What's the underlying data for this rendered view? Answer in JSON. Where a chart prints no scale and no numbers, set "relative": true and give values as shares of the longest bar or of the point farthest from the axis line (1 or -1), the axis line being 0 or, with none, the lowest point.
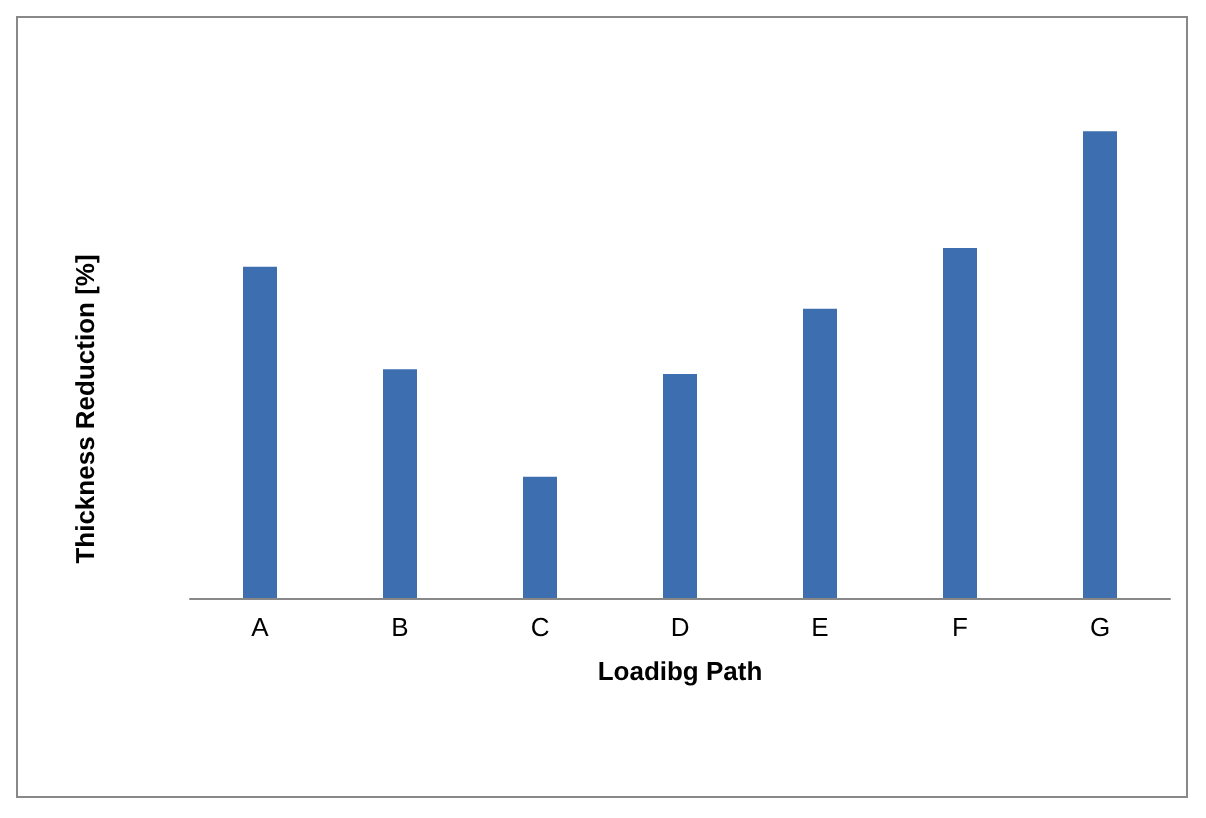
{
  "chart_data": {
    "type": "bar",
    "xlabel": "Loadibg Path",
    "ylabel": "Thickness Reduction [%]",
    "categories": [
      "A",
      "B",
      "C",
      "D",
      "E",
      "F",
      "G"
    ],
    "values": [
      0.71,
      0.49,
      0.26,
      0.48,
      0.62,
      0.75,
      1
    ],
    "color": "#3d6fb0",
    "relative": true
  }
}
